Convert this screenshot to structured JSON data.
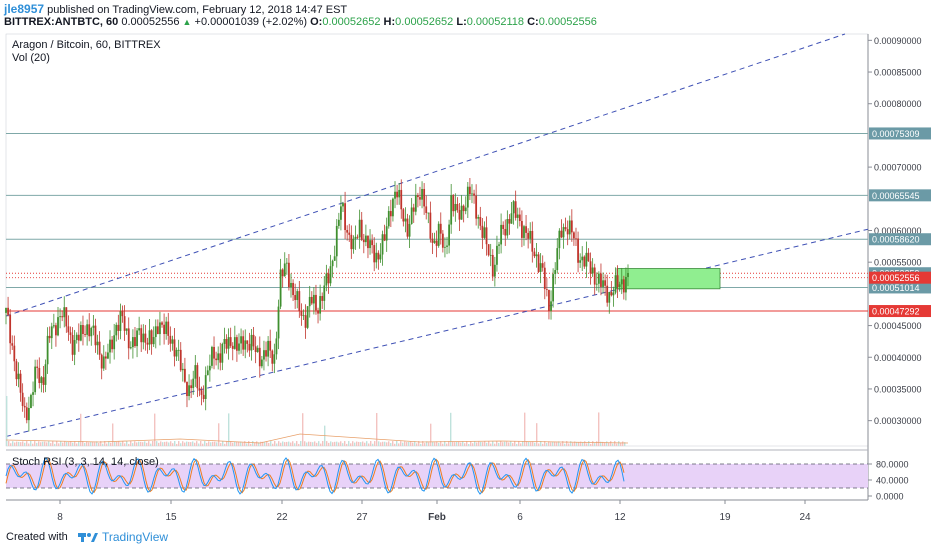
{
  "header": {
    "author": "jle8957",
    "published": "published on TradingView.com, February 12, 2018 14:47 EST",
    "symbol": "BITTREX:ANTBTC, 60",
    "last": "0.00052556",
    "change": "+0.00001039 (+2.02%)",
    "o_label": "O:",
    "o_value": "0.00052652",
    "h_label": "H:",
    "h_value": "0.00052652",
    "l_label": "L:",
    "l_value": "0.00052118",
    "c_label": "C:",
    "c_value": "0.00052556"
  },
  "chart_data": {
    "type": "candlestick",
    "title": "Aragon / Bitcoin, 60, BITTREX",
    "volume_label": "Vol (20)",
    "x_ticks": [
      "8",
      "15",
      "22",
      "27",
      "Feb",
      "6",
      "12",
      "19",
      "24"
    ],
    "y_ticks": [
      "0.00090000",
      "0.00085000",
      "0.00080000",
      "0.00070000",
      "0.00060000",
      "0.00055000",
      "0.00045000",
      "0.00040000",
      "0.00035000",
      "0.00030000"
    ],
    "ylim": [
      0.00026,
      0.00091
    ],
    "price_path": [
      [
        0,
        0.00047
      ],
      [
        1,
        0.00042
      ],
      [
        2,
        0.00036
      ],
      [
        3,
        0.00031
      ],
      [
        4,
        0.00033
      ],
      [
        5,
        0.00038
      ],
      [
        6,
        0.00036
      ],
      [
        7,
        0.00043
      ],
      [
        8,
        0.00045
      ],
      [
        9,
        0.00047
      ],
      [
        10,
        0.00045
      ],
      [
        11,
        0.00042
      ],
      [
        12,
        0.00043
      ],
      [
        13,
        0.00045
      ],
      [
        14,
        0.00044
      ],
      [
        15,
        0.00042
      ],
      [
        16,
        0.00039
      ],
      [
        17,
        0.00041
      ],
      [
        18,
        0.00045
      ],
      [
        19,
        0.00046
      ],
      [
        20,
        0.00043
      ],
      [
        21,
        0.00042
      ],
      [
        22,
        0.00044
      ],
      [
        23,
        0.00043
      ],
      [
        24,
        0.00042
      ],
      [
        25,
        0.00046
      ],
      [
        26,
        0.00044
      ],
      [
        27,
        0.00043
      ],
      [
        28,
        0.00041
      ],
      [
        29,
        0.00037
      ],
      [
        30,
        0.00035
      ],
      [
        31,
        0.00037
      ],
      [
        32,
        0.00034
      ],
      [
        33,
        0.00037
      ],
      [
        34,
        0.00041
      ],
      [
        35,
        0.0004
      ],
      [
        36,
        0.00042
      ],
      [
        37,
        0.00043
      ],
      [
        38,
        0.00041
      ],
      [
        39,
        0.00043
      ],
      [
        40,
        0.00042
      ],
      [
        41,
        0.00041
      ],
      [
        42,
        0.0004
      ],
      [
        43,
        0.00041
      ],
      [
        44,
        0.0004
      ],
      [
        45,
        0.00052
      ],
      [
        46,
        0.00055
      ],
      [
        47,
        0.0005
      ],
      [
        48,
        0.00048
      ],
      [
        49,
        0.00046
      ],
      [
        50,
        0.00049
      ],
      [
        51,
        0.00048
      ],
      [
        52,
        0.0005
      ],
      [
        53,
        0.00053
      ],
      [
        54,
        0.00058
      ],
      [
        55,
        0.00064
      ],
      [
        56,
        0.0006
      ],
      [
        57,
        0.00057
      ],
      [
        58,
        0.00061
      ],
      [
        59,
        0.00058
      ],
      [
        60,
        0.00057
      ],
      [
        61,
        0.00056
      ],
      [
        62,
        0.00058
      ],
      [
        63,
        0.00064
      ],
      [
        64,
        0.00066
      ],
      [
        65,
        0.00063
      ],
      [
        66,
        0.0006
      ],
      [
        67,
        0.00064
      ],
      [
        68,
        0.00067
      ],
      [
        69,
        0.00062
      ],
      [
        70,
        0.00058
      ],
      [
        71,
        0.0006
      ],
      [
        72,
        0.00056
      ],
      [
        73,
        0.00065
      ],
      [
        74,
        0.00062
      ],
      [
        75,
        0.00064
      ],
      [
        76,
        0.00066
      ],
      [
        77,
        0.00064
      ],
      [
        78,
        0.0006
      ],
      [
        79,
        0.00057
      ],
      [
        80,
        0.00054
      ],
      [
        81,
        0.00059
      ],
      [
        82,
        0.00061
      ],
      [
        83,
        0.00063
      ],
      [
        84,
        0.00062
      ],
      [
        85,
        0.0006
      ],
      [
        86,
        0.00058
      ],
      [
        87,
        0.00056
      ],
      [
        88,
        0.00053
      ],
      [
        89,
        0.00048
      ],
      [
        90,
        0.00054
      ],
      [
        91,
        0.0006
      ],
      [
        92,
        0.00061
      ],
      [
        93,
        0.00059
      ],
      [
        94,
        0.00056
      ],
      [
        95,
        0.00055
      ],
      [
        96,
        0.00054
      ],
      [
        97,
        0.00052
      ],
      [
        98,
        0.00051
      ],
      [
        99,
        0.0005
      ],
      [
        100,
        0.00051
      ],
      [
        101,
        0.00052
      ],
      [
        102,
        0.00052556
      ]
    ],
    "annotations": {
      "horizontal_levels": [
        "0.00075309",
        "0.00065545",
        "0.00058620",
        "0.00051014"
      ],
      "other_labels": [
        "0.00053259",
        "0.00047292"
      ],
      "last_price_label": "0.00052556",
      "support_resistance_color": "#7fa8a8",
      "red_line_color": "#e53935"
    },
    "rsi": {
      "label": "Stoch RSI (3, 3, 14, 14, close)",
      "y_ticks": [
        "80.0000",
        "40.0000",
        "0.0000"
      ],
      "band": [
        20,
        80
      ],
      "band_color": "#e8d2f8",
      "k_color": "#2196f3",
      "d_color": "#ef7d1f"
    },
    "colors": {
      "up": "#26a69a",
      "down": "#ef5350",
      "candle_up": "#3f8f2f",
      "candle_down": "#c0342c",
      "trend": "#3f51b5",
      "box": "#90ee90"
    }
  },
  "footer": {
    "created": "Created with",
    "brand": "TradingView"
  }
}
